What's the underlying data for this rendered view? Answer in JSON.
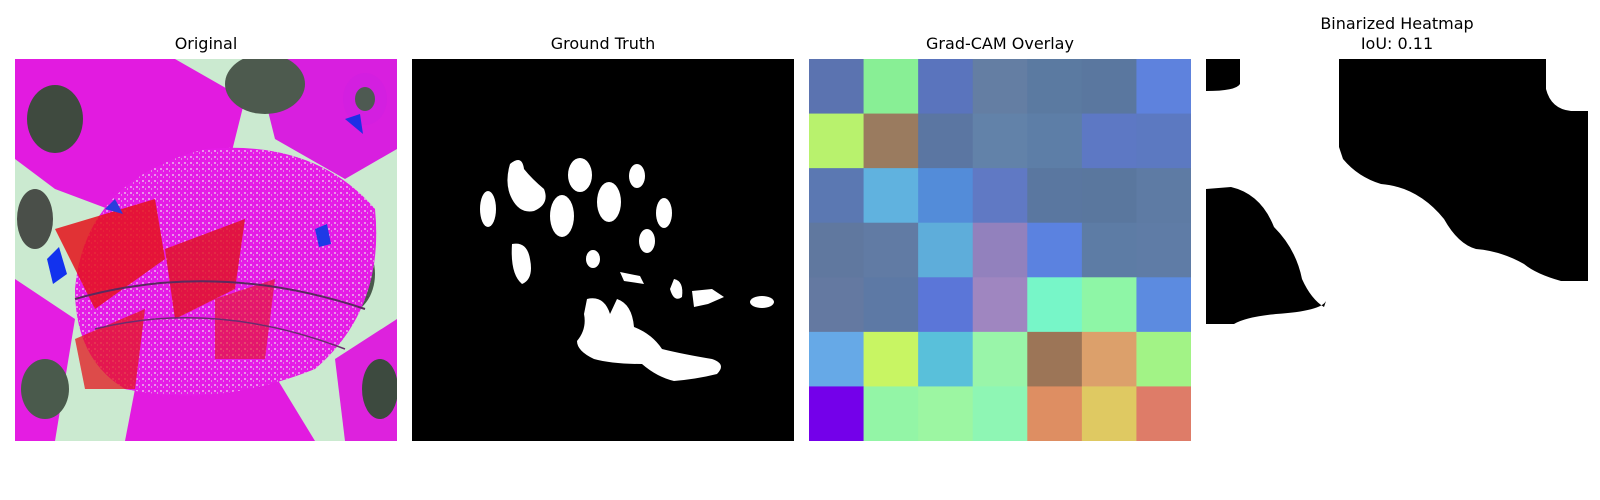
{
  "panels": [
    {
      "id": "original",
      "title": "Original"
    },
    {
      "id": "ground_truth",
      "title": "Ground Truth"
    },
    {
      "id": "gradcam",
      "title": "Grad-CAM Overlay"
    },
    {
      "id": "binarized",
      "title": "Binarized Heatmap",
      "subtitle": "IoU: 0.11"
    }
  ],
  "gradcam_grid": [
    [
      "#5b73b0",
      "#88ef95",
      "#5a74bd",
      "#647ea3",
      "#5b7aa1",
      "#5a779f",
      "#5e82dd"
    ],
    [
      "#b8f26d",
      "#9a7b5f",
      "#5b76a2",
      "#6282a9",
      "#5d7ea7",
      "#5d78c4",
      "#5c79c1"
    ],
    [
      "#5b78b2",
      "#60b2df",
      "#538cd9",
      "#6079c4",
      "#5a77a0",
      "#5a779e",
      "#5e7ba4"
    ],
    [
      "#60789f",
      "#617ba4",
      "#5eadda",
      "#9281bd",
      "#5b82e0",
      "#5d7ca5",
      "#5f7ca6"
    ],
    [
      "#6479a1",
      "#5d79a5",
      "#5b76d8",
      "#9f86c0",
      "#77f6c8",
      "#8ef6a6",
      "#5c8be0"
    ],
    [
      "#66a9e7",
      "#c8f563",
      "#59c0da",
      "#99f5a9",
      "#9c7557",
      "#dca06b",
      "#a2f386"
    ],
    [
      "#7400ea",
      "#93f5a6",
      "#9cf6a2",
      "#8ef6b4",
      "#de8e62",
      "#dfc962",
      "#de7c68"
    ]
  ]
}
